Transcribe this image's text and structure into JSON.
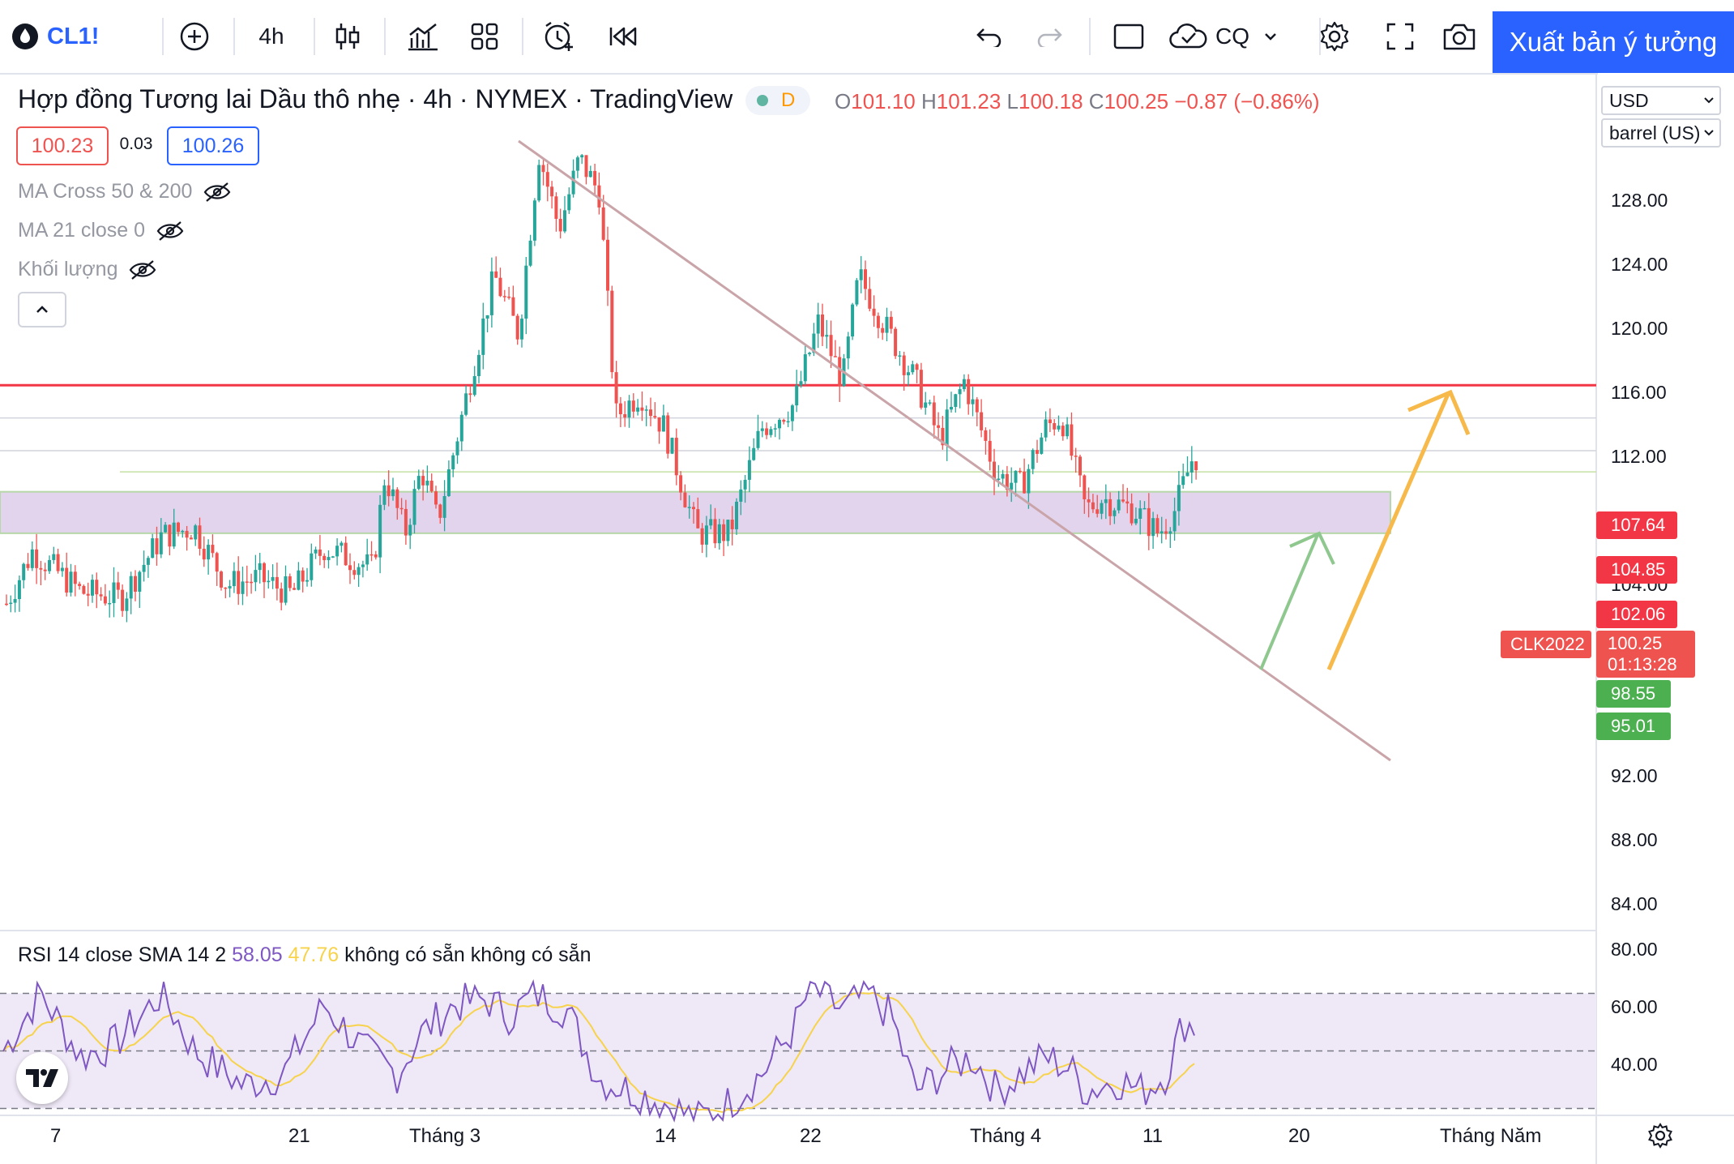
{
  "toolbar": {
    "symbol": "CL1!",
    "interval": "4h",
    "compare_label": "CQ",
    "publish_label": "Xuất bản ý tưởng"
  },
  "legend": {
    "title": "Hợp đồng Tương lai Dầu thô nhẹ · 4h · NYMEX · TradingView",
    "status_letter": "D",
    "open_label": "O",
    "open": "101.10",
    "high_label": "H",
    "high": "101.23",
    "low_label": "L",
    "low": "100.18",
    "close_label": "C",
    "close": "100.25",
    "change": "−0.87 (−0.86%)",
    "bid": "100.23",
    "spread": "0.03",
    "ask": "100.26"
  },
  "indicators": [
    {
      "label": "MA Cross 50 & 200"
    },
    {
      "label": "MA 21 close 0"
    },
    {
      "label": "Khối lượng"
    }
  ],
  "currency_select": "USD",
  "unit_select": "barrel (US)",
  "price_axis": [
    "128.00",
    "124.00",
    "120.00",
    "116.00",
    "112.00",
    "104.00",
    "92.00",
    "88.00",
    "84.00"
  ],
  "price_tags": {
    "red_line": "107.64",
    "line_2": "104.85",
    "line_3": "102.06",
    "contract": "CLK2022",
    "last_price": "100.25",
    "countdown": "01:13:28",
    "zone_top": "98.55",
    "zone_bottom": "95.01"
  },
  "rsi": {
    "name": "RSI",
    "params": "14 close SMA 14 2",
    "value": "58.05",
    "sma_value": "47.76",
    "na1": "không có sẵn",
    "na2": "không có sẵn",
    "axis": [
      "80.00",
      "60.00",
      "40.00"
    ]
  },
  "time_axis": [
    "7",
    "21",
    "Tháng 3",
    "14",
    "22",
    "Tháng 4",
    "11",
    "20",
    "Tháng Năm"
  ],
  "colors": {
    "up": "#26a69a",
    "down": "#ef5350",
    "resistance_line": "#f23645",
    "trendline": "#c9a4a8",
    "zone_fill": "#e3d4ee",
    "green_arrow": "#8fc88f",
    "orange_arrow": "#f6b94a",
    "rsi_line": "#7e57c2",
    "rsi_sma": "#f7d34c",
    "accent": "#2962ff"
  }
}
